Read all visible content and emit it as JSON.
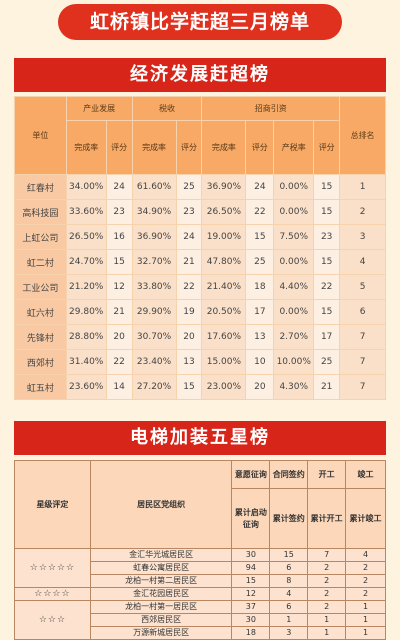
{
  "title": "虹桥镇比学赶超三月榜单",
  "economy": {
    "banner": "经济发展赶超榜",
    "headers": {
      "unit": "单位",
      "group1": "产业发展",
      "group2": "税收",
      "group3": "招商引资",
      "rank": "总排名",
      "completion": "完成率",
      "score": "评分",
      "tax_rate": "产税率"
    },
    "rows": [
      {
        "unit": "红春村",
        "ind_rate": "34.00%",
        "ind_score": "24",
        "tax_rate": "61.60%",
        "tax_score": "25",
        "inv_rate": "36.90%",
        "inv_score": "24",
        "inv_ratio": "0.00%",
        "inv_ratio_score": "15",
        "rank": "1"
      },
      {
        "unit": "高科技园",
        "ind_rate": "33.60%",
        "ind_score": "23",
        "tax_rate": "34.90%",
        "tax_score": "23",
        "inv_rate": "26.50%",
        "inv_score": "22",
        "inv_ratio": "0.00%",
        "inv_ratio_score": "15",
        "rank": "2"
      },
      {
        "unit": "上虹公司",
        "ind_rate": "26.50%",
        "ind_score": "16",
        "tax_rate": "36.90%",
        "tax_score": "24",
        "inv_rate": "19.00%",
        "inv_score": "15",
        "inv_ratio": "7.50%",
        "inv_ratio_score": "23",
        "rank": "3"
      },
      {
        "unit": "虹二村",
        "ind_rate": "24.70%",
        "ind_score": "15",
        "tax_rate": "32.70%",
        "tax_score": "21",
        "inv_rate": "47.80%",
        "inv_score": "25",
        "inv_ratio": "0.00%",
        "inv_ratio_score": "15",
        "rank": "4"
      },
      {
        "unit": "工业公司",
        "ind_rate": "21.20%",
        "ind_score": "12",
        "tax_rate": "33.80%",
        "tax_score": "22",
        "inv_rate": "21.40%",
        "inv_score": "18",
        "inv_ratio": "4.40%",
        "inv_ratio_score": "22",
        "rank": "5"
      },
      {
        "unit": "虹六村",
        "ind_rate": "29.80%",
        "ind_score": "21",
        "tax_rate": "29.90%",
        "tax_score": "19",
        "inv_rate": "20.50%",
        "inv_score": "17",
        "inv_ratio": "0.00%",
        "inv_ratio_score": "15",
        "rank": "6"
      },
      {
        "unit": "先锋村",
        "ind_rate": "28.80%",
        "ind_score": "20",
        "tax_rate": "30.70%",
        "tax_score": "20",
        "inv_rate": "17.60%",
        "inv_score": "13",
        "inv_ratio": "2.70%",
        "inv_ratio_score": "17",
        "rank": "7"
      },
      {
        "unit": "西郊村",
        "ind_rate": "31.40%",
        "ind_score": "22",
        "tax_rate": "23.40%",
        "tax_score": "13",
        "inv_rate": "15.00%",
        "inv_score": "10",
        "inv_ratio": "10.00%",
        "inv_ratio_score": "25",
        "rank": "7"
      },
      {
        "unit": "虹五村",
        "ind_rate": "23.60%",
        "ind_score": "14",
        "tax_rate": "27.20%",
        "tax_score": "15",
        "inv_rate": "23.00%",
        "inv_score": "20",
        "inv_ratio": "4.30%",
        "inv_ratio_score": "21",
        "rank": "7"
      }
    ]
  },
  "elevator": {
    "banner": "电梯加装五星榜",
    "headers": {
      "star": "星级评定",
      "org": "居民区党组织",
      "g1": "意愿征询",
      "g2": "合同签约",
      "g3": "开工",
      "g4": "竣工",
      "s1": "累计启动征询",
      "s2": "累计签约",
      "s3": "累计开工",
      "s4": "累计竣工"
    },
    "groups": [
      {
        "stars": "☆☆☆☆☆",
        "rows": [
          {
            "org": "金汇华光城居民区",
            "v1": "30",
            "v2": "15",
            "v3": "7",
            "v4": "4"
          },
          {
            "org": "虹春公寓居民区",
            "v1": "94",
            "v2": "6",
            "v3": "2",
            "v4": "2"
          },
          {
            "org": "龙柏一村第二居民区",
            "v1": "15",
            "v2": "8",
            "v3": "2",
            "v4": "2"
          }
        ]
      },
      {
        "stars": "☆☆☆☆",
        "rows": [
          {
            "org": "金汇花园居民区",
            "v1": "12",
            "v2": "4",
            "v3": "2",
            "v4": "2"
          }
        ]
      },
      {
        "stars": "☆☆☆",
        "rows": [
          {
            "org": "龙柏一村第一居民区",
            "v1": "37",
            "v2": "6",
            "v3": "2",
            "v4": "1"
          },
          {
            "org": "西郊居民区",
            "v1": "30",
            "v2": "1",
            "v3": "1",
            "v4": "1"
          },
          {
            "org": "万源新城居民区",
            "v1": "18",
            "v2": "3",
            "v3": "1",
            "v4": "1"
          }
        ]
      }
    ]
  }
}
